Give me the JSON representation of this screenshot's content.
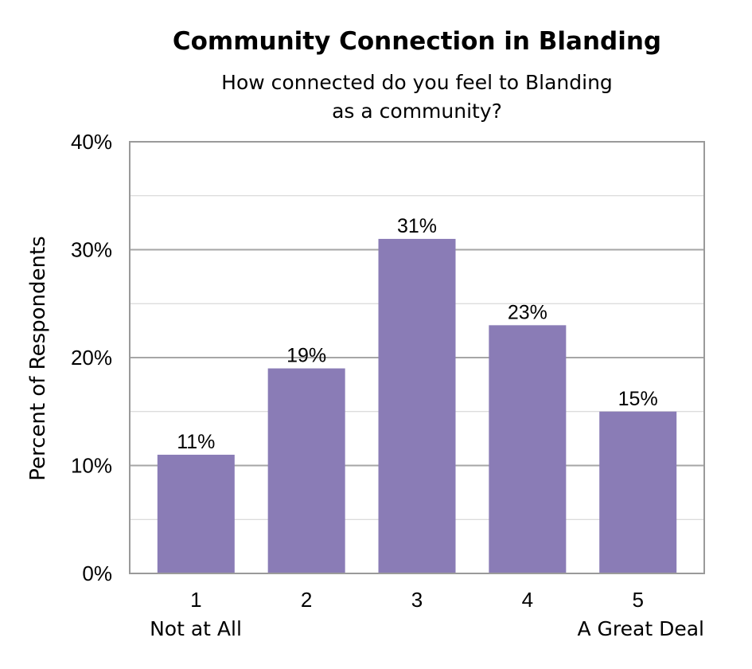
{
  "chart_data": {
    "type": "bar",
    "title": "Community Connection in Blanding",
    "subtitle_lines": [
      "How connected do you feel to Blanding",
      "as a community?"
    ],
    "xlabel": "",
    "ylabel": "Percent of Respondents",
    "categories": [
      "1",
      "2",
      "3",
      "4",
      "5"
    ],
    "category_sublabels": {
      "first": "Not at All",
      "last": "A Great Deal"
    },
    "values": [
      11,
      19,
      31,
      23,
      15
    ],
    "value_labels": [
      "11%",
      "19%",
      "31%",
      "23%",
      "15%"
    ],
    "ylim": [
      0,
      40
    ],
    "yticks": [
      0,
      10,
      20,
      30,
      40
    ],
    "ytick_labels": [
      "0%",
      "10%",
      "20%",
      "30%",
      "40%"
    ],
    "minor_gridlines": [
      5,
      15,
      25,
      35
    ],
    "grid": true,
    "bar_color": "#8a7cb6"
  }
}
